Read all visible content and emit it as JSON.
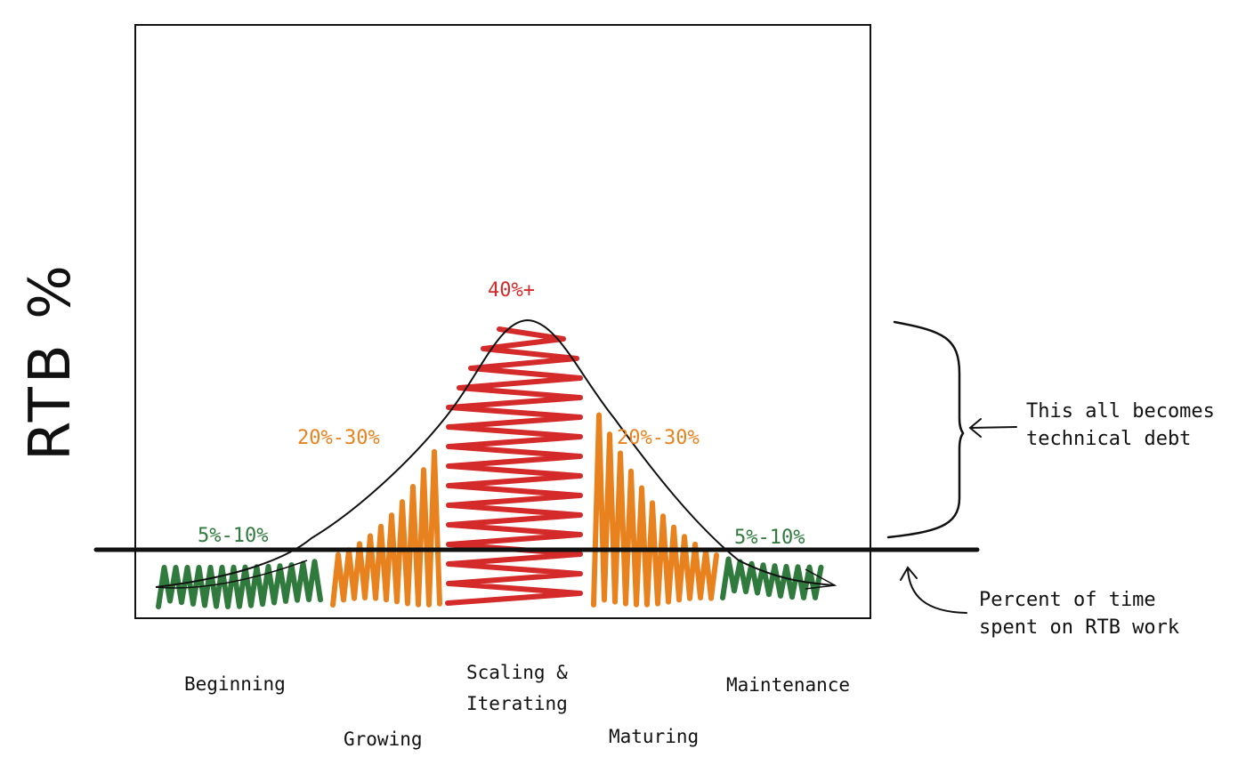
{
  "y_axis_label": "RTB %",
  "colors": {
    "green": "#2f7a3c",
    "orange": "#e8821e",
    "red": "#d42a2a",
    "ink": "#111111"
  },
  "regions": [
    {
      "id": "beginning",
      "percent_label": "5%-10%",
      "color": "green"
    },
    {
      "id": "growing",
      "percent_label": "20%-30%",
      "color": "orange"
    },
    {
      "id": "scaling",
      "percent_label": "40%+",
      "color": "red"
    },
    {
      "id": "maturing",
      "percent_label": "20%-30%",
      "color": "orange"
    },
    {
      "id": "maintenance",
      "percent_label": "5%-10%",
      "color": "green"
    }
  ],
  "stages": {
    "beginning": "Beginning",
    "growing": "Growing",
    "scaling_line1": "Scaling &",
    "scaling_line2": "Iterating",
    "maturing": "Maturing",
    "maintenance": "Maintenance"
  },
  "annotations": {
    "tech_debt_line1": "This all becomes",
    "tech_debt_line2": "technical debt",
    "baseline_line1": "Percent of time",
    "baseline_line2": "spent on RTB work"
  }
}
